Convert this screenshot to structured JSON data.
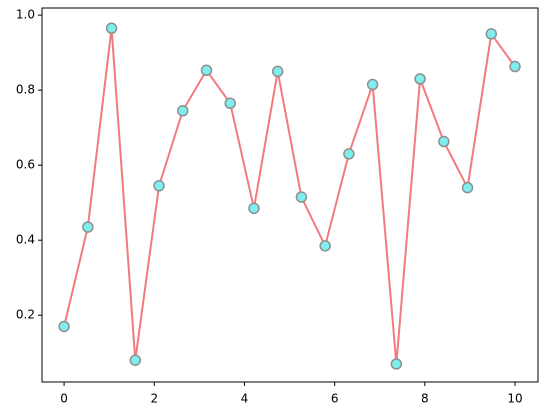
{
  "chart_data": {
    "type": "line",
    "x": [
      0,
      0.5263,
      1.0526,
      1.5789,
      2.1053,
      2.6316,
      3.1579,
      3.6842,
      4.2105,
      4.7368,
      5.2632,
      5.7895,
      6.3158,
      6.8421,
      7.3684,
      7.8947,
      8.4211,
      8.9474,
      9.4737,
      10
    ],
    "series": [
      {
        "color": "#f37b7b",
        "marker_color": "#7eeeee",
        "marker_edge": "#8f8f8f",
        "values": [
          0.17,
          0.435,
          0.965,
          0.08,
          0.545,
          0.745,
          0.853,
          0.765,
          0.485,
          0.85,
          0.515,
          0.385,
          0.63,
          0.815,
          0.07,
          0.83,
          0.663,
          0.54,
          0.95,
          0.863
        ]
      }
    ],
    "xlim": [
      -0.49,
      10.51
    ],
    "ylim": [
      0.022,
      1.019
    ],
    "xticks": [
      0,
      2,
      4,
      6,
      8,
      10
    ],
    "yticks": [
      0.2,
      0.4,
      0.6,
      0.8,
      {
        "value": 1,
        "label": "1.0"
      }
    ]
  }
}
